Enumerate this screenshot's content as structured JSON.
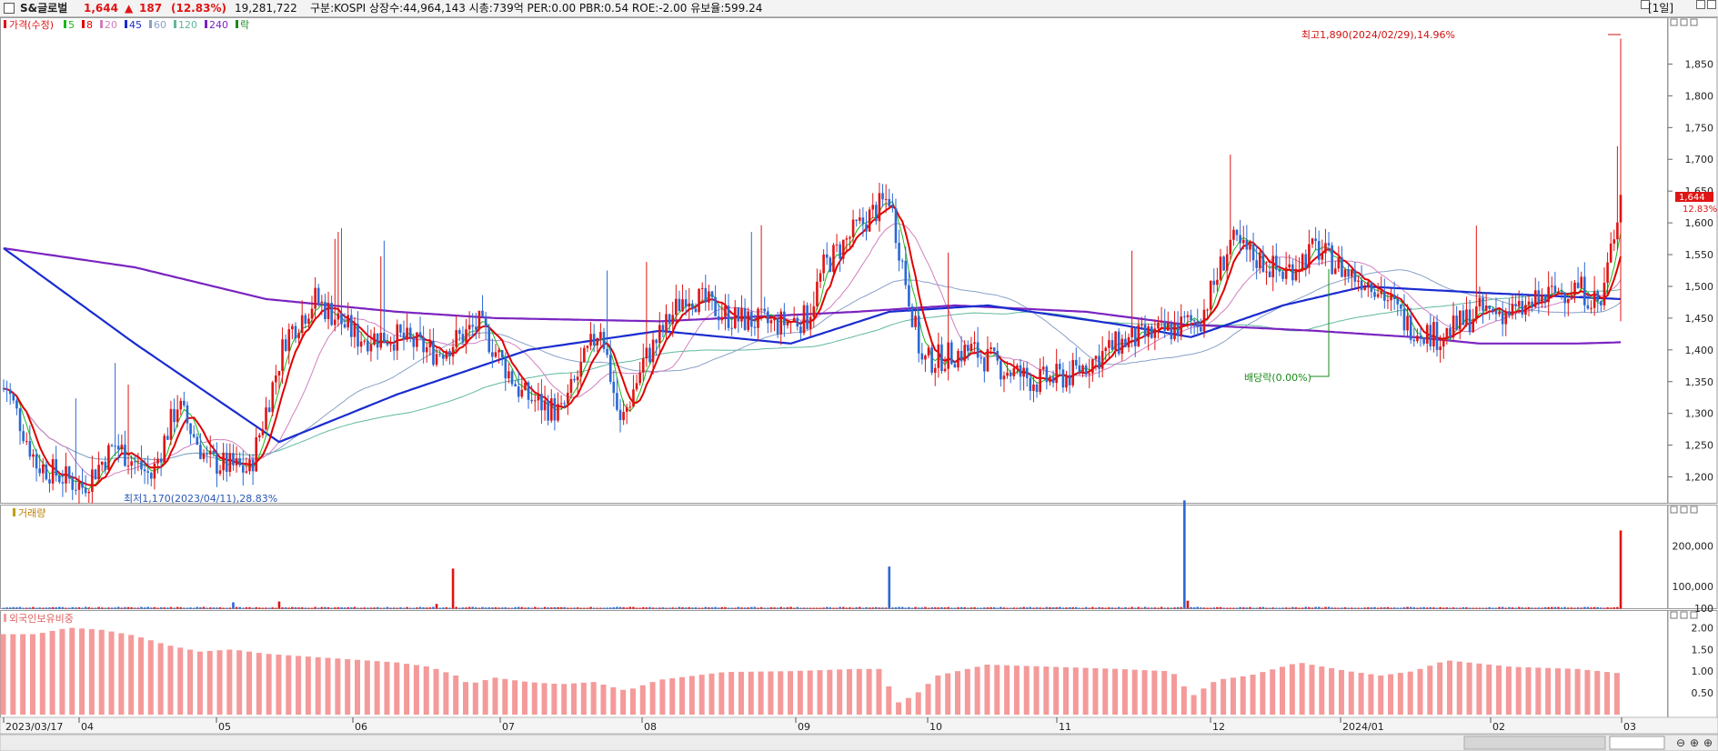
{
  "header": {
    "stock_name": "S&글로벌",
    "price": "1,644",
    "change_arrow": "▲",
    "change": "187",
    "change_rate": "(12.83%)",
    "volume": "19,281,722",
    "info": "구분:KOSPI 상장수:44,964,143 시총:739억 PER:0.00 PBR:0.54 ROE:-2.00 유보율:599.24",
    "period": "[1일]"
  },
  "legend": {
    "price_label": "가격(수정)",
    "ma_items": [
      {
        "label": "5",
        "color": "#1cb81c"
      },
      {
        "label": "8",
        "color": "#e00000"
      },
      {
        "label": "20",
        "color": "#d080c0"
      },
      {
        "label": "45",
        "color": "#1a2ccf"
      },
      {
        "label": "60",
        "color": "#8aa0c8"
      },
      {
        "label": "120",
        "color": "#60b8a0"
      },
      {
        "label": "240",
        "color": "#7a24c0"
      }
    ],
    "ex_label": "락",
    "volume_label": "거래량",
    "foreign_label": "외국인보유비중"
  },
  "annotations": {
    "high": "최고1,890(2024/02/29),14.96%",
    "low": "최저1,170(2023/04/11),28.83%",
    "dividend": "배당락(0.00%)",
    "price_tag": "1,644",
    "price_tag_pct": "12.83%"
  },
  "colors": {
    "up": "#e01414",
    "down": "#2a68d4",
    "foreign": "#f49a9a"
  },
  "chart_data": [
    {
      "type": "candlestick",
      "title": "가격(수정)",
      "y_ticks": [
        1200,
        1250,
        1300,
        1350,
        1400,
        1450,
        1500,
        1550,
        1600,
        1650,
        1700,
        1750,
        1800,
        1850
      ],
      "y_tick_labels": [
        "1,200",
        "1,250",
        "1,300",
        "1,350",
        "1,400",
        "1,450",
        "1,500",
        "1,550",
        "1,600",
        "1,650",
        "1,700",
        "1,750",
        "1,800",
        "1,850"
      ],
      "ylim": [
        1165,
        1895
      ],
      "x_labels": [
        "2023/03/17",
        "04",
        "05",
        "06",
        "07",
        "08",
        "09",
        "10",
        "11",
        "12",
        "2024/01",
        "02",
        "03"
      ],
      "ohlc_anchor_series": [
        [
          1,
          1340
        ],
        [
          10,
          1220
        ],
        [
          24,
          1185
        ],
        [
          34,
          1250
        ],
        [
          45,
          1200
        ],
        [
          53,
          1315
        ],
        [
          62,
          1225
        ],
        [
          75,
          1210
        ],
        [
          86,
          1420
        ],
        [
          95,
          1480
        ],
        [
          108,
          1420
        ],
        [
          120,
          1420
        ],
        [
          132,
          1395
        ],
        [
          145,
          1440
        ],
        [
          158,
          1330
        ],
        [
          170,
          1300
        ],
        [
          182,
          1440
        ],
        [
          188,
          1280
        ],
        [
          195,
          1380
        ],
        [
          208,
          1490
        ],
        [
          222,
          1450
        ],
        [
          235,
          1440
        ],
        [
          245,
          1450
        ],
        [
          250,
          1530
        ],
        [
          260,
          1590
        ],
        [
          270,
          1640
        ],
        [
          280,
          1380
        ],
        [
          295,
          1400
        ],
        [
          305,
          1370
        ],
        [
          315,
          1350
        ],
        [
          325,
          1360
        ],
        [
          340,
          1410
        ],
        [
          355,
          1430
        ],
        [
          365,
          1450
        ],
        [
          374,
          1570
        ],
        [
          380,
          1550
        ],
        [
          390,
          1520
        ],
        [
          400,
          1560
        ],
        [
          410,
          1520
        ],
        [
          418,
          1505
        ],
        [
          428,
          1440
        ],
        [
          438,
          1420
        ],
        [
          450,
          1460
        ],
        [
          462,
          1460
        ],
        [
          473,
          1490
        ],
        [
          480,
          1500
        ],
        [
          487,
          1470
        ],
        [
          493,
          1644
        ]
      ],
      "series": [
        {
          "name": "5",
          "color": "#1cb81c"
        },
        {
          "name": "8",
          "color": "#e00000"
        },
        {
          "name": "20",
          "color": "#d080c0"
        },
        {
          "name": "45",
          "color": "#1a2ccf"
        },
        {
          "name": "60",
          "color": "#8aa0c8"
        },
        {
          "name": "120",
          "color": "#60b8a0"
        },
        {
          "name": "240",
          "color": "#7a24c0"
        }
      ],
      "series_45": [
        [
          0,
          1560
        ],
        [
          40,
          1410
        ],
        [
          84,
          1255
        ],
        [
          120,
          1330
        ],
        [
          160,
          1400
        ],
        [
          200,
          1430
        ],
        [
          240,
          1410
        ],
        [
          270,
          1460
        ],
        [
          300,
          1470
        ],
        [
          340,
          1440
        ],
        [
          362,
          1420
        ],
        [
          390,
          1470
        ],
        [
          415,
          1500
        ],
        [
          450,
          1490
        ],
        [
          493,
          1480
        ]
      ],
      "series_240": [
        [
          0,
          1560
        ],
        [
          40,
          1530
        ],
        [
          80,
          1480
        ],
        [
          120,
          1460
        ],
        [
          150,
          1450
        ],
        [
          200,
          1445
        ],
        [
          260,
          1460
        ],
        [
          290,
          1470
        ],
        [
          330,
          1460
        ],
        [
          360,
          1440
        ],
        [
          400,
          1430
        ],
        [
          430,
          1420
        ],
        [
          450,
          1410
        ],
        [
          480,
          1410
        ],
        [
          493,
          1412
        ]
      ]
    },
    {
      "type": "bar",
      "title": "거래량",
      "y_tick_labels": [
        "200,000",
        "100,000",
        "100"
      ],
      "y_ticks": [
        200000,
        100000,
        100
      ],
      "ylim": [
        0,
        290000
      ],
      "spikes": [
        [
          70,
          16000
        ],
        [
          84,
          18000
        ],
        [
          132,
          12000
        ],
        [
          137,
          100000
        ],
        [
          270,
          105000
        ],
        [
          360,
          270000
        ],
        [
          361,
          20000
        ],
        [
          493,
          195000
        ]
      ],
      "baseline": 3000
    },
    {
      "type": "bar",
      "title": "외국인보유비중",
      "y_tick_labels": [
        "2.00",
        "1.50",
        "1.00",
        "0.50"
      ],
      "y_ticks": [
        2.0,
        1.5,
        1.0,
        0.5
      ],
      "ylim": [
        0,
        2.3
      ],
      "anchors": [
        [
          0,
          1.85
        ],
        [
          10,
          1.85
        ],
        [
          20,
          2.0
        ],
        [
          30,
          1.95
        ],
        [
          40,
          1.82
        ],
        [
          50,
          1.6
        ],
        [
          60,
          1.45
        ],
        [
          70,
          1.5
        ],
        [
          80,
          1.4
        ],
        [
          90,
          1.35
        ],
        [
          100,
          1.3
        ],
        [
          110,
          1.25
        ],
        [
          120,
          1.2
        ],
        [
          130,
          1.1
        ],
        [
          138,
          0.9
        ],
        [
          142,
          0.7
        ],
        [
          150,
          0.85
        ],
        [
          160,
          0.75
        ],
        [
          170,
          0.7
        ],
        [
          180,
          0.75
        ],
        [
          190,
          0.55
        ],
        [
          200,
          0.8
        ],
        [
          220,
          0.98
        ],
        [
          240,
          1.0
        ],
        [
          260,
          1.05
        ],
        [
          268,
          1.05
        ],
        [
          272,
          0.25
        ],
        [
          278,
          0.45
        ],
        [
          285,
          0.9
        ],
        [
          300,
          1.15
        ],
        [
          320,
          1.1
        ],
        [
          340,
          1.05
        ],
        [
          355,
          1.0
        ],
        [
          358,
          0.9
        ],
        [
          362,
          0.4
        ],
        [
          370,
          0.8
        ],
        [
          380,
          0.9
        ],
        [
          395,
          1.2
        ],
        [
          410,
          1.0
        ],
        [
          420,
          0.9
        ],
        [
          430,
          1.0
        ],
        [
          440,
          1.25
        ],
        [
          460,
          1.1
        ],
        [
          480,
          1.05
        ],
        [
          493,
          0.95
        ]
      ]
    }
  ]
}
